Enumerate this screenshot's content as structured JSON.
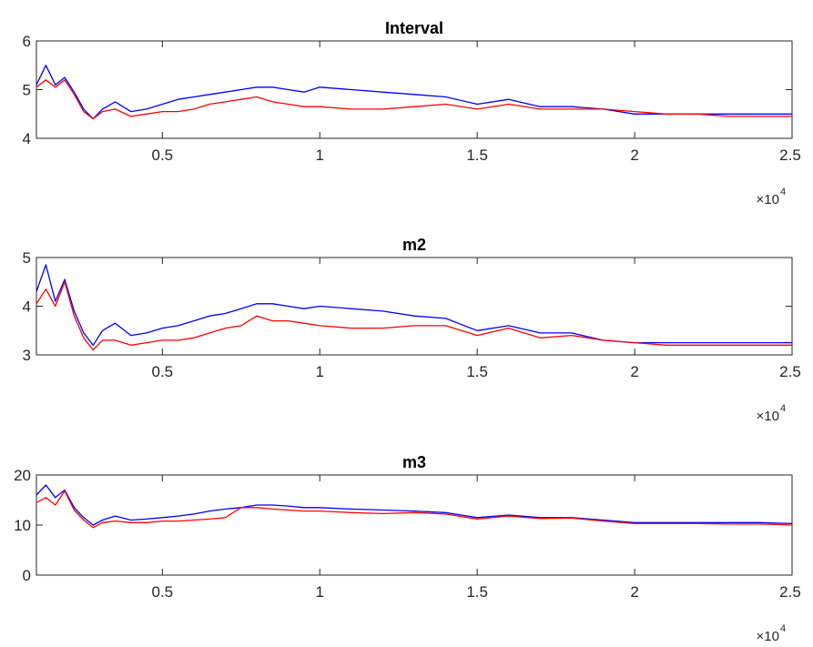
{
  "chart_data": [
    {
      "type": "line",
      "title": "Interval",
      "xlim": [
        1000,
        25000
      ],
      "ylim": [
        4,
        6
      ],
      "xticks": [
        5000,
        10000,
        15000,
        20000,
        25000
      ],
      "xtick_labels": [
        "0.5",
        "1",
        "1.5",
        "2",
        "2.5"
      ],
      "yticks": [
        4,
        5,
        6
      ],
      "ytick_labels": [
        "4",
        "5",
        "6"
      ],
      "x_exponent_base": "×10",
      "x_exponent_power": "4",
      "grid": false,
      "series": [
        {
          "color": "#0000ff",
          "x": [
            1000,
            1300,
            1600,
            1900,
            2200,
            2500,
            2800,
            3100,
            3500,
            4000,
            4500,
            5000,
            5500,
            6000,
            6500,
            7000,
            7500,
            8000,
            8500,
            9000,
            9500,
            10000,
            11000,
            12000,
            13000,
            14000,
            15000,
            16000,
            17000,
            18000,
            19000,
            20000,
            21000,
            22000,
            23000,
            24000,
            25000
          ],
          "y": [
            5.1,
            5.5,
            5.1,
            5.25,
            4.95,
            4.6,
            4.4,
            4.6,
            4.75,
            4.55,
            4.6,
            4.7,
            4.8,
            4.85,
            4.9,
            4.95,
            5.0,
            5.05,
            5.05,
            5.0,
            4.95,
            5.05,
            5.0,
            4.95,
            4.9,
            4.85,
            4.7,
            4.8,
            4.65,
            4.65,
            4.6,
            4.5,
            4.5,
            4.5,
            4.5,
            4.5,
            4.5
          ]
        },
        {
          "color": "#ff0000",
          "x": [
            1000,
            1300,
            1600,
            1900,
            2200,
            2500,
            2800,
            3100,
            3500,
            4000,
            4500,
            5000,
            5500,
            6000,
            6500,
            7000,
            7500,
            8000,
            8500,
            9000,
            9500,
            10000,
            11000,
            12000,
            13000,
            14000,
            15000,
            16000,
            17000,
            18000,
            19000,
            20000,
            21000,
            22000,
            23000,
            24000,
            25000
          ],
          "y": [
            5.05,
            5.2,
            5.05,
            5.2,
            4.9,
            4.55,
            4.4,
            4.55,
            4.6,
            4.45,
            4.5,
            4.55,
            4.55,
            4.6,
            4.7,
            4.75,
            4.8,
            4.85,
            4.75,
            4.7,
            4.65,
            4.65,
            4.6,
            4.6,
            4.65,
            4.7,
            4.6,
            4.7,
            4.6,
            4.6,
            4.6,
            4.55,
            4.5,
            4.5,
            4.45,
            4.45,
            4.45
          ]
        }
      ]
    },
    {
      "type": "line",
      "title": "m2",
      "xlim": [
        1000,
        25000
      ],
      "ylim": [
        3,
        5
      ],
      "xticks": [
        5000,
        10000,
        15000,
        20000,
        25000
      ],
      "xtick_labels": [
        "0.5",
        "1",
        "1.5",
        "2",
        "2.5"
      ],
      "yticks": [
        3,
        4,
        5
      ],
      "ytick_labels": [
        "3",
        "4",
        "5"
      ],
      "x_exponent_base": "×10",
      "x_exponent_power": "4",
      "grid": false,
      "series": [
        {
          "color": "#0000ff",
          "x": [
            1000,
            1300,
            1600,
            1900,
            2200,
            2500,
            2800,
            3100,
            3500,
            4000,
            4500,
            5000,
            5500,
            6000,
            6500,
            7000,
            7500,
            8000,
            8500,
            9000,
            9500,
            10000,
            11000,
            12000,
            13000,
            14000,
            15000,
            16000,
            17000,
            18000,
            19000,
            20000,
            21000,
            22000,
            23000,
            24000,
            25000
          ],
          "y": [
            4.3,
            4.85,
            4.1,
            4.55,
            3.9,
            3.45,
            3.2,
            3.5,
            3.65,
            3.4,
            3.45,
            3.55,
            3.6,
            3.7,
            3.8,
            3.85,
            3.95,
            4.05,
            4.05,
            4.0,
            3.95,
            4.0,
            3.95,
            3.9,
            3.8,
            3.75,
            3.5,
            3.6,
            3.45,
            3.45,
            3.3,
            3.25,
            3.25,
            3.25,
            3.25,
            3.25,
            3.25
          ]
        },
        {
          "color": "#ff0000",
          "x": [
            1000,
            1300,
            1600,
            1900,
            2200,
            2500,
            2800,
            3100,
            3500,
            4000,
            4500,
            5000,
            5500,
            6000,
            6500,
            7000,
            7500,
            8000,
            8500,
            9000,
            9500,
            10000,
            11000,
            12000,
            13000,
            14000,
            15000,
            16000,
            17000,
            18000,
            19000,
            20000,
            21000,
            22000,
            23000,
            24000,
            25000
          ],
          "y": [
            4.05,
            4.35,
            4.0,
            4.5,
            3.8,
            3.35,
            3.1,
            3.3,
            3.3,
            3.2,
            3.25,
            3.3,
            3.3,
            3.35,
            3.45,
            3.55,
            3.6,
            3.8,
            3.7,
            3.7,
            3.65,
            3.6,
            3.55,
            3.55,
            3.6,
            3.6,
            3.4,
            3.55,
            3.35,
            3.4,
            3.3,
            3.25,
            3.2,
            3.2,
            3.2,
            3.2,
            3.2
          ]
        }
      ]
    },
    {
      "type": "line",
      "title": "m3",
      "xlim": [
        1000,
        25000
      ],
      "ylim": [
        0,
        20
      ],
      "xticks": [
        5000,
        10000,
        15000,
        20000,
        25000
      ],
      "xtick_labels": [
        "0.5",
        "1",
        "1.5",
        "2",
        "2.5"
      ],
      "yticks": [
        0,
        10,
        20
      ],
      "ytick_labels": [
        "0",
        "10",
        "20"
      ],
      "x_exponent_base": "×10",
      "x_exponent_power": "4",
      "grid": false,
      "series": [
        {
          "color": "#0000ff",
          "x": [
            1000,
            1300,
            1600,
            1900,
            2200,
            2500,
            2800,
            3100,
            3500,
            4000,
            4500,
            5000,
            5500,
            6000,
            6500,
            7000,
            7500,
            8000,
            8500,
            9000,
            9500,
            10000,
            11000,
            12000,
            13000,
            14000,
            15000,
            16000,
            17000,
            18000,
            19000,
            20000,
            21000,
            22000,
            23000,
            24000,
            25000
          ],
          "y": [
            16.0,
            18.0,
            15.5,
            17.0,
            13.5,
            11.5,
            10.0,
            11.0,
            11.8,
            11.0,
            11.2,
            11.5,
            11.8,
            12.2,
            12.8,
            13.2,
            13.5,
            14.0,
            14.0,
            13.8,
            13.5,
            13.5,
            13.2,
            13.0,
            12.8,
            12.5,
            11.5,
            12.0,
            11.5,
            11.5,
            11.0,
            10.5,
            10.5,
            10.5,
            10.5,
            10.5,
            10.3
          ]
        },
        {
          "color": "#ff0000",
          "x": [
            1000,
            1300,
            1600,
            1900,
            2200,
            2500,
            2800,
            3100,
            3500,
            4000,
            4500,
            5000,
            5500,
            6000,
            6500,
            7000,
            7500,
            8000,
            8500,
            9000,
            9500,
            10000,
            11000,
            12000,
            13000,
            14000,
            15000,
            16000,
            17000,
            18000,
            19000,
            20000,
            21000,
            22000,
            23000,
            24000,
            25000
          ],
          "y": [
            14.5,
            15.5,
            14.0,
            16.8,
            13.0,
            11.0,
            9.5,
            10.5,
            10.8,
            10.5,
            10.5,
            10.8,
            10.8,
            11.0,
            11.2,
            11.5,
            13.5,
            13.5,
            13.2,
            13.0,
            12.8,
            12.8,
            12.5,
            12.3,
            12.5,
            12.2,
            11.2,
            11.8,
            11.3,
            11.4,
            10.8,
            10.3,
            10.3,
            10.3,
            10.2,
            10.2,
            10.0
          ]
        }
      ]
    }
  ]
}
